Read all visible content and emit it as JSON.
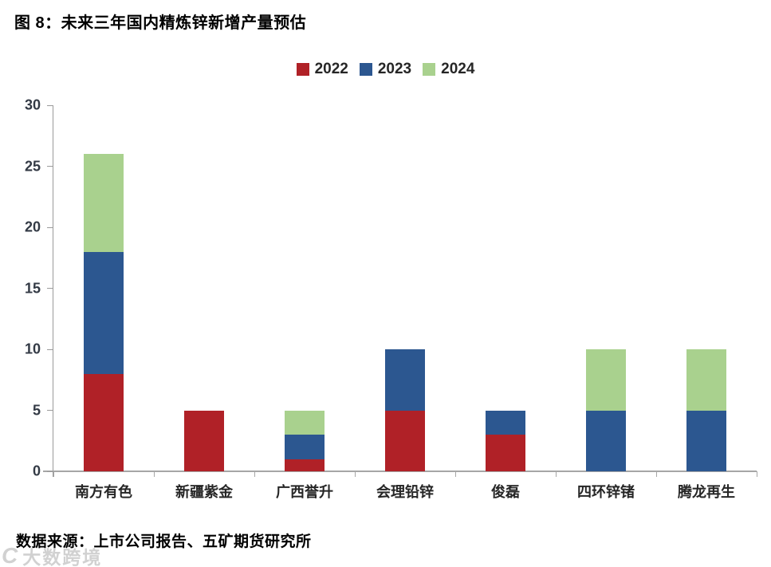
{
  "title": "图 8：未来三年国内精炼锌新增产量预估",
  "source": "数据来源：上市公司报告、五矿期货研究所",
  "watermark": "大数跨境",
  "colors": {
    "series_2022": "#b02127",
    "series_2023": "#2c5790",
    "series_2024": "#a9d18e",
    "axis": "#a6a6a6",
    "tick_text": "#333a45",
    "label_text": "#262626"
  },
  "chart_data": {
    "type": "bar",
    "stacked": true,
    "title": "图 8：未来三年国内精炼锌新增产量预估",
    "categories": [
      "南方有色",
      "新疆紫金",
      "广西誉升",
      "会理铅锌",
      "俊磊",
      "四环锌锗",
      "腾龙再生"
    ],
    "series": [
      {
        "name": "2022",
        "color": "#b02127",
        "values": [
          8,
          5,
          1,
          5,
          3,
          0,
          0
        ]
      },
      {
        "name": "2023",
        "color": "#2c5790",
        "values": [
          10,
          0,
          2,
          5,
          2,
          5,
          5
        ]
      },
      {
        "name": "2024",
        "color": "#a9d18e",
        "values": [
          8,
          0,
          2,
          0,
          0,
          5,
          5
        ]
      }
    ],
    "totals": [
      26,
      5,
      5,
      10,
      5,
      10,
      10
    ],
    "xlabel": "",
    "ylabel": "",
    "ylim": [
      0,
      30
    ],
    "yticks": [
      0,
      5,
      10,
      15,
      20,
      25,
      30
    ],
    "grid": false,
    "legend_position": "top-center"
  }
}
